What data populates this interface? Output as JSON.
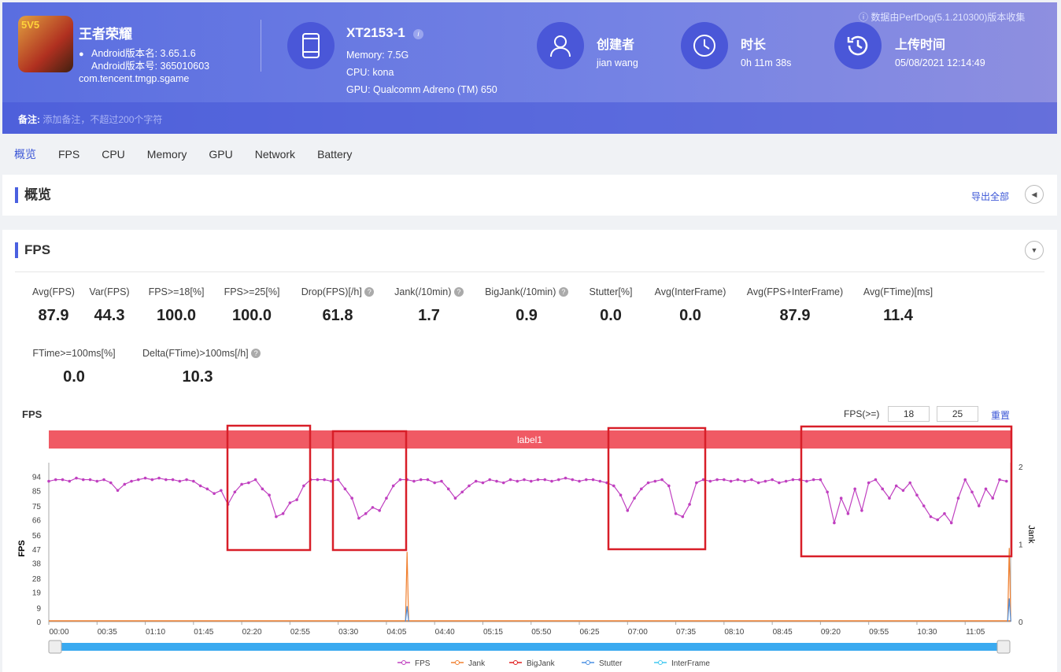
{
  "header": {
    "app_name": "王者荣耀",
    "app_icon_text": "5V5",
    "version_name": "Android版本名: 3.65.1.6",
    "version_code": "Android版本号: 365010603",
    "package": "com.tencent.tmgp.sgame",
    "device": "XT2153-1",
    "memory": "Memory: 7.5G",
    "cpu": "CPU: kona",
    "gpu": "GPU: Qualcomm Adreno (TM) 650",
    "creator_label": "创建者",
    "creator": "jian wang",
    "duration_label": "时长",
    "duration": "0h 11m 38s",
    "upload_label": "上传时间",
    "upload_time": "05/08/2021 12:14:49",
    "collected_by": "数据由PerfDog(5.1.210300)版本收集",
    "note_label": "备注:",
    "note_placeholder": "添加备注，不超过200个字符"
  },
  "tabs": [
    "概览",
    "FPS",
    "CPU",
    "Memory",
    "GPU",
    "Network",
    "Battery"
  ],
  "overview": {
    "title": "概览",
    "export": "导出全部"
  },
  "fps_card": {
    "title": "FPS",
    "metrics": [
      {
        "label": "Avg(FPS)",
        "value": "87.9"
      },
      {
        "label": "Var(FPS)",
        "value": "44.3"
      },
      {
        "label": "FPS>=18[%]",
        "value": "100.0"
      },
      {
        "label": "FPS>=25[%]",
        "value": "100.0"
      },
      {
        "label": "Drop(FPS)[/h]",
        "value": "61.8",
        "help": true
      },
      {
        "label": "Jank(/10min)",
        "value": "1.7",
        "help": true
      },
      {
        "label": "BigJank(/10min)",
        "value": "0.9",
        "help": true
      },
      {
        "label": "Stutter[%]",
        "value": "0.0"
      },
      {
        "label": "Avg(InterFrame)",
        "value": "0.0"
      },
      {
        "label": "Avg(FPS+InterFrame)",
        "value": "87.9"
      },
      {
        "label": "Avg(FTime)[ms]",
        "value": "11.4"
      },
      {
        "label": "FTime>=100ms[%]",
        "value": "0.0"
      },
      {
        "label": "Delta(FTime)>100ms[/h]",
        "value": "10.3",
        "help": true
      }
    ],
    "threshold_label": "FPS(>=)",
    "threshold1": "18",
    "threshold2": "25",
    "reset": "重置"
  },
  "chart_data": {
    "type": "line",
    "title": "FPS",
    "ylabel": "FPS",
    "y2label": "Jank",
    "band_label": "label1",
    "yticks": [
      0,
      9,
      19,
      28,
      38,
      47,
      56,
      66,
      75,
      85,
      94
    ],
    "y2ticks": [
      0,
      1,
      2
    ],
    "xticks": [
      "00:00",
      "00:35",
      "01:10",
      "01:45",
      "02:20",
      "02:55",
      "03:30",
      "04:05",
      "04:40",
      "05:15",
      "05:50",
      "06:25",
      "07:00",
      "07:35",
      "08:10",
      "08:45",
      "09:20",
      "09:55",
      "10:30",
      "11:05"
    ],
    "x_interval_s": 5,
    "x_max_s": 698,
    "ylim": [
      0,
      103
    ],
    "y2lim": [
      0,
      2.05
    ],
    "series": [
      {
        "name": "FPS",
        "color": "#c040c0",
        "values": [
          91,
          92,
          92,
          91,
          93,
          92,
          92,
          91,
          92,
          90,
          85,
          89,
          91,
          92,
          93,
          92,
          93,
          92,
          92,
          91,
          92,
          91,
          88,
          86,
          83,
          85,
          76,
          84,
          89,
          90,
          92,
          86,
          82,
          68,
          70,
          77,
          79,
          88,
          92,
          92,
          92,
          91,
          92,
          86,
          80,
          67,
          70,
          74,
          72,
          80,
          88,
          92,
          92,
          91,
          92,
          92,
          90,
          91,
          86,
          80,
          84,
          88,
          91,
          90,
          92,
          91,
          90,
          92,
          91,
          92,
          91,
          92,
          92,
          91,
          92,
          93,
          92,
          91,
          92,
          92,
          91,
          90,
          88,
          82,
          72,
          80,
          86,
          90,
          91,
          92,
          88,
          70,
          68,
          76,
          90,
          92,
          91,
          92,
          92,
          91,
          92,
          91,
          92,
          90,
          91,
          92,
          90,
          91,
          92,
          92,
          91,
          92,
          92,
          84,
          64,
          80,
          70,
          86,
          72,
          90,
          92,
          86,
          80,
          88,
          85,
          90,
          82,
          75,
          68,
          66,
          70,
          64,
          80,
          92,
          84,
          75,
          86,
          80,
          92,
          91
        ]
      },
      {
        "name": "Jank",
        "color": "#f08030",
        "points": [
          [
            260,
            0.9
          ],
          [
            697,
            0.95
          ]
        ]
      },
      {
        "name": "BigJank",
        "color": "#e02020",
        "points": []
      },
      {
        "name": "Stutter",
        "color": "#4a90e2",
        "points": [
          [
            260,
            0.2
          ],
          [
            697,
            0.3
          ]
        ]
      },
      {
        "name": "InterFrame",
        "color": "#40c8f0",
        "points": []
      }
    ],
    "legend_position": "bottom"
  }
}
